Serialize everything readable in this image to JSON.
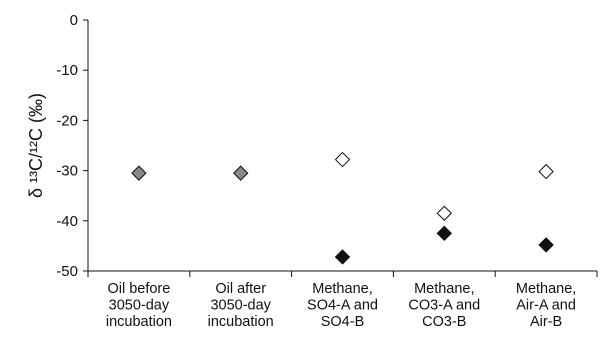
{
  "chart_data": {
    "type": "scatter",
    "ylabel": "δ ¹³C/¹²C (‰)",
    "ylim": [
      -50,
      0
    ],
    "yticks": [
      0,
      -10,
      -20,
      -30,
      -40,
      -50
    ],
    "grid": false,
    "categories": [
      [
        "Oil before",
        "3050-day",
        "incubation"
      ],
      [
        "Oil after",
        "3050-day",
        "incubation"
      ],
      [
        "Methane,",
        "SO4-A and",
        "SO4-B"
      ],
      [
        "Methane,",
        "CO3-A and",
        "CO3-B"
      ],
      [
        "Methane,",
        "Air-A and",
        "Air-B"
      ]
    ],
    "series": [
      {
        "marker": "diamond",
        "fill": "#888888",
        "values": [
          -30.5,
          -30.5,
          null,
          null,
          null
        ]
      },
      {
        "marker": "diamond",
        "fill": "#ffffff",
        "values": [
          null,
          null,
          -27.8,
          -38.5,
          -30.2
        ]
      },
      {
        "marker": "diamond",
        "fill": "#111111",
        "values": [
          null,
          null,
          -47.2,
          -42.5,
          -44.8
        ]
      }
    ]
  }
}
